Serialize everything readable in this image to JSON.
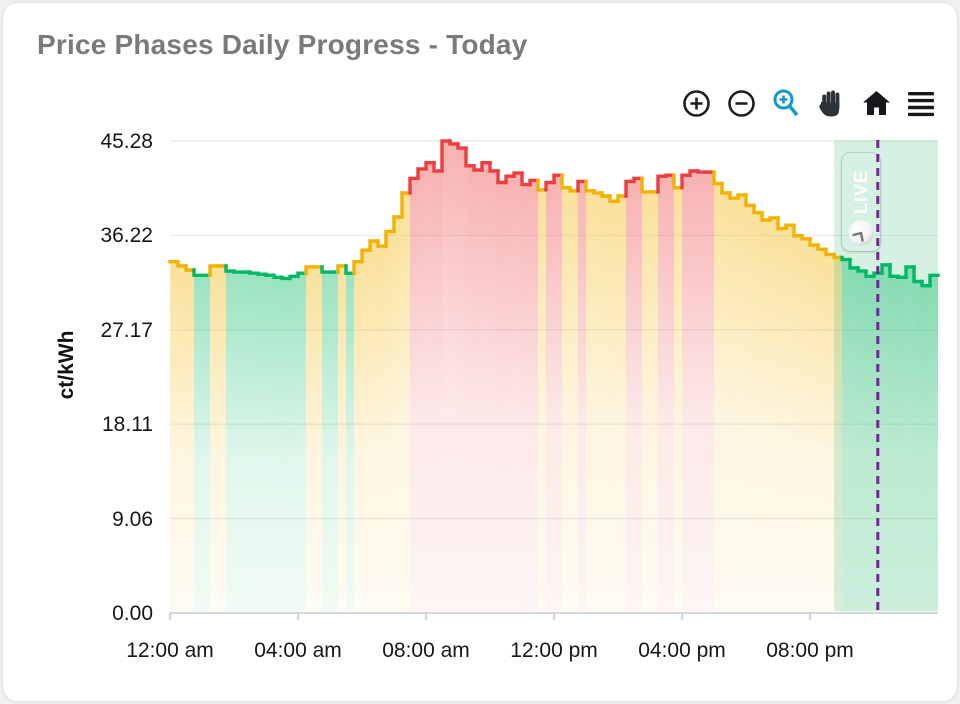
{
  "card": {
    "title": "Price Phases Daily Progress - Today"
  },
  "toolbar": {
    "icon_color": "#1c1e21",
    "active_color": "#1199cc",
    "items": [
      {
        "name": "zoom-in",
        "active": false
      },
      {
        "name": "zoom-out",
        "active": false
      },
      {
        "name": "box-zoom",
        "active": true
      },
      {
        "name": "pan",
        "active": false
      },
      {
        "name": "reset-home",
        "active": false
      },
      {
        "name": "menu",
        "active": false
      }
    ]
  },
  "chart_data": {
    "type": "area",
    "subtype": "step-line-with-gradient-fill",
    "title": "Price Phases Daily Progress - Today",
    "xlabel": "",
    "ylabel": "ct/kWh",
    "ylim": [
      0,
      45.28
    ],
    "x_range_hours": [
      0,
      24
    ],
    "step_minutes": 15,
    "grid": "horizontal-only",
    "legend_position": "none",
    "yticks": [
      "0.00",
      "9.06",
      "18.11",
      "27.17",
      "36.22",
      "45.28"
    ],
    "ytick_values": [
      0,
      9.06,
      18.11,
      27.17,
      36.22,
      45.28
    ],
    "xticks": [
      "12:00 am",
      "04:00 am",
      "08:00 am",
      "12:00 pm",
      "04:00 pm",
      "08:00 pm"
    ],
    "xtick_hours": [
      0,
      4,
      8,
      12,
      16,
      20
    ],
    "phase_colors": {
      "g": "#00b964",
      "y": "#f2b202",
      "r": "#ec3e40"
    },
    "phase_names": {
      "g": "green-cheap",
      "y": "yellow-medium",
      "r": "red-expensive"
    },
    "future_overlay": {
      "start_hour": 20.75,
      "end_hour": 24,
      "color": "rgba(70,190,125,0.22)"
    },
    "now_line": {
      "hour": 22.12,
      "color": "#7b1fa2",
      "style": "dashed"
    },
    "live_badge": {
      "label": "LIVE",
      "color": "#8c1db1",
      "icon": "clock-icon"
    },
    "points": [
      [
        "00:00",
        33.7,
        "y"
      ],
      [
        "00:15",
        33.3,
        "y"
      ],
      [
        "00:30",
        32.9,
        "y"
      ],
      [
        "00:45",
        32.4,
        "g"
      ],
      [
        "01:00",
        32.4,
        "g"
      ],
      [
        "01:15",
        33.3,
        "y"
      ],
      [
        "01:30",
        33.3,
        "y"
      ],
      [
        "01:45",
        32.8,
        "g"
      ],
      [
        "02:00",
        32.7,
        "g"
      ],
      [
        "02:15",
        32.7,
        "g"
      ],
      [
        "02:30",
        32.6,
        "g"
      ],
      [
        "02:45",
        32.5,
        "g"
      ],
      [
        "03:00",
        32.4,
        "g"
      ],
      [
        "03:15",
        32.2,
        "g"
      ],
      [
        "03:30",
        32.1,
        "g"
      ],
      [
        "03:45",
        32.3,
        "g"
      ],
      [
        "04:00",
        32.6,
        "g"
      ],
      [
        "04:15",
        33.2,
        "y"
      ],
      [
        "04:30",
        33.2,
        "y"
      ],
      [
        "04:45",
        32.7,
        "g"
      ],
      [
        "05:00",
        32.7,
        "g"
      ],
      [
        "05:15",
        33.3,
        "y"
      ],
      [
        "05:30",
        32.6,
        "g"
      ],
      [
        "05:45",
        33.7,
        "y"
      ],
      [
        "06:00",
        34.8,
        "y"
      ],
      [
        "06:15",
        35.7,
        "y"
      ],
      [
        "06:30",
        35.2,
        "y"
      ],
      [
        "06:45",
        36.6,
        "y"
      ],
      [
        "07:00",
        38.0,
        "y"
      ],
      [
        "07:15",
        40.3,
        "y"
      ],
      [
        "07:30",
        41.7,
        "r"
      ],
      [
        "07:45",
        42.6,
        "r"
      ],
      [
        "08:00",
        43.2,
        "r"
      ],
      [
        "08:15",
        42.4,
        "r"
      ],
      [
        "08:30",
        45.28,
        "r"
      ],
      [
        "08:45",
        45.0,
        "r"
      ],
      [
        "09:00",
        44.6,
        "r"
      ],
      [
        "09:15",
        42.9,
        "r"
      ],
      [
        "09:30",
        42.5,
        "r"
      ],
      [
        "09:45",
        43.2,
        "r"
      ],
      [
        "10:00",
        42.4,
        "r"
      ],
      [
        "10:15",
        41.3,
        "r"
      ],
      [
        "10:30",
        41.9,
        "r"
      ],
      [
        "10:45",
        42.2,
        "r"
      ],
      [
        "11:00",
        41.1,
        "r"
      ],
      [
        "11:15",
        41.5,
        "r"
      ],
      [
        "11:30",
        40.6,
        "y"
      ],
      [
        "11:45",
        41.3,
        "r"
      ],
      [
        "12:00",
        42.0,
        "r"
      ],
      [
        "12:15",
        40.8,
        "y"
      ],
      [
        "12:30",
        40.5,
        "y"
      ],
      [
        "12:45",
        41.4,
        "r"
      ],
      [
        "13:00",
        40.5,
        "y"
      ],
      [
        "13:15",
        40.3,
        "y"
      ],
      [
        "13:30",
        40.0,
        "y"
      ],
      [
        "13:45",
        39.5,
        "y"
      ],
      [
        "14:00",
        40.0,
        "y"
      ],
      [
        "14:15",
        41.4,
        "r"
      ],
      [
        "14:30",
        41.7,
        "r"
      ],
      [
        "14:45",
        40.4,
        "y"
      ],
      [
        "15:00",
        40.4,
        "y"
      ],
      [
        "15:15",
        41.9,
        "r"
      ],
      [
        "15:30",
        42.0,
        "r"
      ],
      [
        "15:45",
        40.8,
        "y"
      ],
      [
        "16:00",
        42.0,
        "r"
      ],
      [
        "16:15",
        42.4,
        "r"
      ],
      [
        "16:30",
        42.3,
        "r"
      ],
      [
        "16:45",
        42.3,
        "r"
      ],
      [
        "17:00",
        41.2,
        "y"
      ],
      [
        "17:15",
        40.3,
        "y"
      ],
      [
        "17:30",
        39.8,
        "y"
      ],
      [
        "17:45",
        40.1,
        "y"
      ],
      [
        "18:00",
        39.1,
        "y"
      ],
      [
        "18:15",
        38.4,
        "y"
      ],
      [
        "18:30",
        37.7,
        "y"
      ],
      [
        "18:45",
        37.9,
        "y"
      ],
      [
        "19:00",
        36.9,
        "y"
      ],
      [
        "19:15",
        37.2,
        "y"
      ],
      [
        "19:30",
        36.2,
        "y"
      ],
      [
        "19:45",
        35.9,
        "y"
      ],
      [
        "20:00",
        35.3,
        "y"
      ],
      [
        "20:15",
        34.9,
        "y"
      ],
      [
        "20:30",
        34.4,
        "y"
      ],
      [
        "20:45",
        34.1,
        "y"
      ],
      [
        "21:00",
        33.9,
        "g"
      ],
      [
        "21:15",
        33.1,
        "g"
      ],
      [
        "21:30",
        32.8,
        "g"
      ],
      [
        "21:45",
        32.3,
        "g"
      ],
      [
        "22:00",
        32.6,
        "g"
      ],
      [
        "22:15",
        33.4,
        "g"
      ],
      [
        "22:30",
        32.3,
        "g"
      ],
      [
        "22:45",
        32.2,
        "g"
      ],
      [
        "23:00",
        33.2,
        "g"
      ],
      [
        "23:15",
        31.8,
        "g"
      ],
      [
        "23:30",
        31.4,
        "g"
      ],
      [
        "23:45",
        32.4,
        "g"
      ]
    ]
  }
}
